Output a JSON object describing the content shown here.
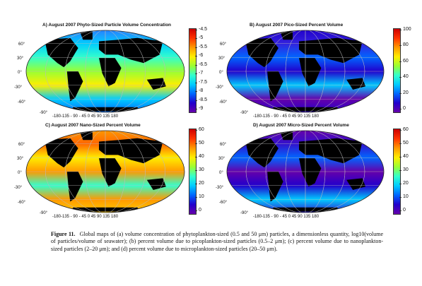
{
  "panels": [
    {
      "title": "A) August 2007 Phyto-Sized Particle Volume Concentration",
      "lat_labels": [
        "60°",
        "30°",
        "0°",
        "-30°",
        "-60°",
        "-90°"
      ],
      "lon_labels": "-180-135 - 90 - 45   0   45  90  135 180",
      "colorbar": {
        "ticks": [
          "-4.5",
          "-5",
          "-5.5",
          "-6",
          "-6.5",
          "-7",
          "-7.5",
          "-8",
          "-8.5",
          "-9"
        ],
        "colors": [
          "#cc0000",
          "#ff3300",
          "#ff9900",
          "#ffee00",
          "#99ff33",
          "#33ffcc",
          "#00ccff",
          "#0066ff",
          "#2200cc",
          "#6600aa"
        ]
      }
    },
    {
      "title": "B) August 2007 Pico-Sized Percent Volume",
      "lat_labels": [
        "60°",
        "30°",
        "0°",
        "-30°",
        "-60°",
        "-90°"
      ],
      "lon_labels": "-180-135 - 90 - 45   0   45  90  135 180",
      "colorbar": {
        "ticks": [
          "100",
          "80",
          "60",
          "40",
          "20",
          "0"
        ],
        "colors": [
          "#cc0000",
          "#ff3300",
          "#ff9900",
          "#ffee00",
          "#99ff33",
          "#33ffcc",
          "#00ccff",
          "#0066ff",
          "#2200cc",
          "#6600aa"
        ]
      }
    },
    {
      "title": "C) August 2007 Nano-Sized Percent Volume",
      "lat_labels": [
        "60°",
        "30°",
        "0°",
        "-30°",
        "-60°",
        "-90°"
      ],
      "lon_labels": "-180-135 - 90 - 45   0   45  90  135 180",
      "colorbar": {
        "ticks": [
          "60",
          "50",
          "40",
          "30",
          "20",
          "10",
          "0"
        ],
        "colors": [
          "#cc0000",
          "#ff3300",
          "#ff9900",
          "#ffee00",
          "#99ff33",
          "#33ffcc",
          "#00ccff",
          "#0066ff",
          "#2200cc",
          "#6600aa"
        ]
      }
    },
    {
      "title": "D) August 2007 Micro-Sized Percent Volume",
      "lat_labels": [
        "60°",
        "30°",
        "0°",
        "-30°",
        "-60°",
        "-90°"
      ],
      "lon_labels": "-180-135 - 90 - 45   0   45  90  135 180",
      "colorbar": {
        "ticks": [
          "60",
          "50",
          "40",
          "30",
          "20",
          "10",
          "0"
        ],
        "colors": [
          "#cc0000",
          "#ff3300",
          "#ff9900",
          "#ffee00",
          "#99ff33",
          "#33ffcc",
          "#00ccff",
          "#0066ff",
          "#2200cc",
          "#6600aa"
        ]
      }
    }
  ],
  "caption": {
    "label": "Figure 11.",
    "text": "Global maps of (a) volume concentration of phytoplankton-sized (0.5 and 50 μm) particles, a dimensionless quantity, log10(volume of particles/volume of seawater); (b) percent volume due to picoplankton-sized particles (0.5–2 μm); (c) percent volume due to nanoplankton-sized particles (2–20 μm); and (d) percent volume due to microplankton-sized particles (20–50 μm)."
  },
  "colors": {
    "land": "#000000",
    "graticule": "#bbbbbb"
  }
}
